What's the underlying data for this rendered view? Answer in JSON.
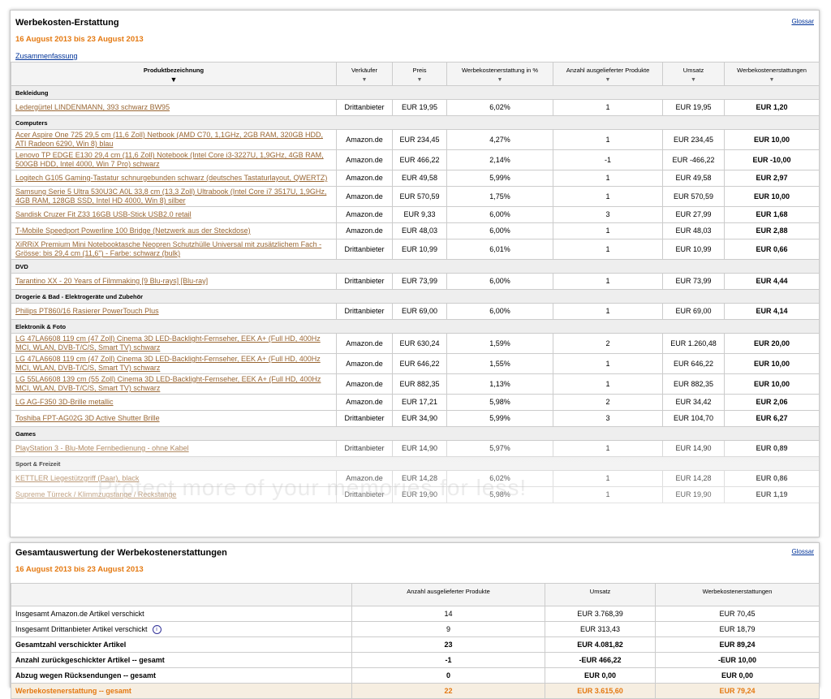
{
  "report": {
    "title": "Werbekosten-Erstattung",
    "glossary": "Glossar",
    "date": "16 August 2013 bis 23 August 2013",
    "summary_link": "Zusammenfassung",
    "columns": [
      "Produktbezeichnung",
      "Verkäufer",
      "Preis",
      "Werbekostenerstattung in %",
      "Anzahl ausgelieferter Produkte",
      "Umsatz",
      "Werbekostenerstattungen"
    ],
    "groups": [
      {
        "name": "Bekleidung",
        "rows": [
          [
            "Ledergürtel LINDENMANN, 393 schwarz BW95",
            "Drittanbieter",
            "EUR 19,95",
            "6,02%",
            "1",
            "EUR 19,95",
            "EUR 1,20"
          ]
        ]
      },
      {
        "name": "Computers",
        "rows": [
          [
            "Acer Aspire One 725 29,5 cm (11,6 Zoll) Netbook (AMD C70, 1,1GHz, 2GB RAM, 320GB HDD, ATI Radeon 6290, Win 8) blau",
            "Amazon.de",
            "EUR 234,45",
            "4,27%",
            "1",
            "EUR 234,45",
            "EUR 10,00"
          ],
          [
            "Lenovo TP EDGE E130 29,4 cm (11,6 Zoll) Notebook (Intel Core i3-3227U, 1,9GHz, 4GB RAM, 500GB HDD, Intel 4000, Win 7 Pro) schwarz",
            "Amazon.de",
            "EUR 466,22",
            "2,14%",
            "-1",
            "EUR -466,22",
            "EUR -10,00"
          ],
          [
            "Logitech G105 Gaming-Tastatur schnurgebunden schwarz (deutsches Tastaturlayout, QWERTZ)",
            "Amazon.de",
            "EUR 49,58",
            "5,99%",
            "1",
            "EUR 49,58",
            "EUR 2,97"
          ],
          [
            "Samsung Serie 5 Ultra 530U3C A0L 33,8 cm (13,3 Zoll) Ultrabook (Intel Core i7 3517U, 1,9GHz, 4GB RAM, 128GB SSD, Intel HD 4000, Win 8) silber",
            "Amazon.de",
            "EUR 570,59",
            "1,75%",
            "1",
            "EUR 570,59",
            "EUR 10,00"
          ],
          [
            "Sandisk Cruzer Fit Z33 16GB USB-Stick USB2.0 retail",
            "Amazon.de",
            "EUR 9,33",
            "6,00%",
            "3",
            "EUR 27,99",
            "EUR 1,68"
          ],
          [
            "T-Mobile Speedport Powerline 100 Bridge (Netzwerk aus der Steckdose)",
            "Amazon.de",
            "EUR 48,03",
            "6,00%",
            "1",
            "EUR 48,03",
            "EUR 2,88"
          ],
          [
            "XiRRiX Premium Mini Notebooktasche Neopren Schutzhülle Universal mit zusätzlichem Fach - Grösse: bis 29,4 cm (11,6\") - Farbe: schwarz (bulk)",
            "Drittanbieter",
            "EUR 10,99",
            "6,01%",
            "1",
            "EUR 10,99",
            "EUR 0,66"
          ]
        ]
      },
      {
        "name": "DVD",
        "rows": [
          [
            "Tarantino XX - 20 Years of Filmmaking [9 Blu-rays] [Blu-ray]",
            "Drittanbieter",
            "EUR 73,99",
            "6,00%",
            "1",
            "EUR 73,99",
            "EUR 4,44"
          ]
        ]
      },
      {
        "name": "Drogerie & Bad - Elektrogeräte und Zubehör",
        "rows": [
          [
            "Philips PT860/16 Rasierer PowerTouch Plus",
            "Drittanbieter",
            "EUR 69,00",
            "6,00%",
            "1",
            "EUR 69,00",
            "EUR 4,14"
          ]
        ]
      },
      {
        "name": "Elektronik & Foto",
        "rows": [
          [
            "LG 47LA6608 119 cm (47 Zoll) Cinema 3D LED-Backlight-Fernseher, EEK A+ (Full HD, 400Hz MCI, WLAN, DVB-T/C/S, Smart TV) schwarz",
            "Amazon.de",
            "EUR 630,24",
            "1,59%",
            "2",
            "EUR 1.260,48",
            "EUR 20,00"
          ],
          [
            "LG 47LA6608 119 cm (47 Zoll) Cinema 3D LED-Backlight-Fernseher, EEK A+ (Full HD, 400Hz MCI, WLAN, DVB-T/C/S, Smart TV) schwarz",
            "Amazon.de",
            "EUR 646,22",
            "1,55%",
            "1",
            "EUR 646,22",
            "EUR 10,00"
          ],
          [
            "LG 55LA6608 139 cm (55 Zoll) Cinema 3D LED-Backlight-Fernseher, EEK A+ (Full HD, 400Hz MCI, WLAN, DVB-T/C/S, Smart TV) schwarz",
            "Amazon.de",
            "EUR 882,35",
            "1,13%",
            "1",
            "EUR 882,35",
            "EUR 10,00"
          ],
          [
            "LG AG-F350 3D-Brille metallic",
            "Amazon.de",
            "EUR 17,21",
            "5,98%",
            "2",
            "EUR 34,42",
            "EUR 2,06"
          ],
          [
            "Toshiba FPT-AG02G 3D Active Shutter Brille",
            "Drittanbieter",
            "EUR 34,90",
            "5,99%",
            "3",
            "EUR 104,70",
            "EUR 6,27"
          ]
        ]
      },
      {
        "name": "Games",
        "rows": [
          [
            "PlayStation 3 - Blu-Mote Fernbedienung - ohne Kabel",
            "Drittanbieter",
            "EUR 14,90",
            "5,97%",
            "1",
            "EUR 14,90",
            "EUR 0,89"
          ]
        ]
      },
      {
        "name": "Sport & Freizeit",
        "rows": [
          [
            "KETTLER Liegestützgriff (Paar), black",
            "Amazon.de",
            "EUR 14,28",
            "6,02%",
            "1",
            "EUR 14,28",
            "EUR 0,86"
          ],
          [
            "Supreme Türreck / Klimmzugstange / Reckstange",
            "Drittanbieter",
            "EUR 19,90",
            "5,98%",
            "1",
            "EUR 19,90",
            "EUR 1,19"
          ]
        ]
      }
    ]
  },
  "watermark": "Protect more of your memories for less!",
  "totals": {
    "title": "Gesamtauswertung der Werbekostenerstattungen",
    "glossary": "Glossar",
    "date": "16 August 2013 bis 23 August 2013",
    "columns": [
      "Anzahl ausgelieferter Produkte",
      "Umsatz",
      "Werbekostenerstattungen"
    ],
    "rows": [
      {
        "cells": [
          "Insgesamt Amazon.de Artikel verschickt",
          "14",
          "EUR 3.768,39",
          "EUR 70,45"
        ]
      },
      {
        "cells": [
          "Insgesamt Drittanbieter Artikel verschickt",
          "9",
          "EUR 313,43",
          "EUR 18,79"
        ],
        "info_icon": true
      },
      {
        "cells": [
          "Gesamtzahl verschickter Artikel",
          "23",
          "EUR 4.081,82",
          "EUR 89,24"
        ],
        "bold": true
      },
      {
        "cells": [
          "Anzahl zurückgeschickter Artikel -- gesamt",
          "-1",
          "-EUR 466,22",
          "-EUR 10,00"
        ],
        "bold": true
      },
      {
        "cells": [
          "Abzug wegen Rücksendungen -- gesamt",
          "0",
          "EUR 0,00",
          "EUR 0,00"
        ],
        "bold": true
      },
      {
        "cells": [
          "Werbekostenerstattung -- gesamt",
          "22",
          "EUR 3.615,60",
          "EUR 79,24"
        ],
        "bold": true,
        "highlight": true
      }
    ]
  }
}
